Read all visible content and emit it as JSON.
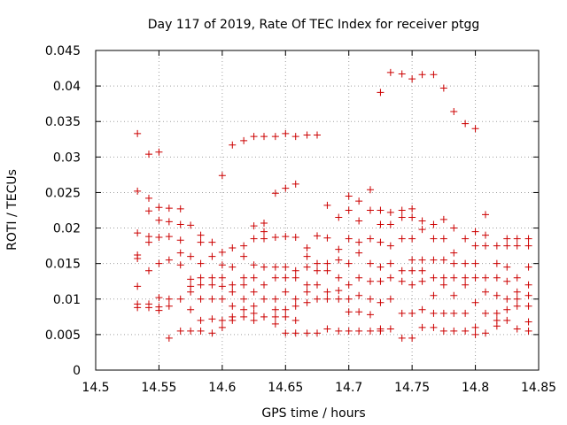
{
  "chart_data": {
    "type": "scatter",
    "title": "Day 117 of 2019, Rate Of TEC Index for receiver ptgg",
    "xlabel": "GPS time / hours",
    "ylabel": "ROTI / TECUs",
    "xlim": [
      14.5,
      14.85
    ],
    "ylim": [
      0,
      0.045
    ],
    "xticks": [
      14.5,
      14.55,
      14.6,
      14.65,
      14.7,
      14.75,
      14.8,
      14.85
    ],
    "xtick_labels": [
      "14.5",
      "14.55",
      "14.6",
      "14.65",
      "14.7",
      "14.75",
      "14.8",
      "14.85"
    ],
    "yticks": [
      0,
      0.005,
      0.01,
      0.015,
      0.02,
      0.025,
      0.03,
      0.035,
      0.04,
      0.045
    ],
    "ytick_labels": [
      "0",
      "0.005",
      "0.01",
      "0.015",
      "0.02",
      "0.025",
      "0.03",
      "0.035",
      "0.04",
      "0.045"
    ],
    "grid": true,
    "marker": "+",
    "color": "#cc0000",
    "series": [
      {
        "name": "ROTI",
        "points": [
          [
            14.533,
            0.0333
          ],
          [
            14.533,
            0.0252
          ],
          [
            14.533,
            0.0193
          ],
          [
            14.533,
            0.0162
          ],
          [
            14.533,
            0.0157
          ],
          [
            14.533,
            0.0118
          ],
          [
            14.533,
            0.0093
          ],
          [
            14.533,
            0.0088
          ],
          [
            14.542,
            0.0304
          ],
          [
            14.542,
            0.0242
          ],
          [
            14.542,
            0.0224
          ],
          [
            14.542,
            0.0188
          ],
          [
            14.542,
            0.018
          ],
          [
            14.542,
            0.014
          ],
          [
            14.542,
            0.0093
          ],
          [
            14.542,
            0.0088
          ],
          [
            14.55,
            0.0307
          ],
          [
            14.55,
            0.0229
          ],
          [
            14.55,
            0.0211
          ],
          [
            14.55,
            0.0187
          ],
          [
            14.55,
            0.015
          ],
          [
            14.55,
            0.0102
          ],
          [
            14.55,
            0.0089
          ],
          [
            14.55,
            0.0084
          ],
          [
            14.558,
            0.0228
          ],
          [
            14.558,
            0.0209
          ],
          [
            14.558,
            0.0188
          ],
          [
            14.558,
            0.0155
          ],
          [
            14.558,
            0.01
          ],
          [
            14.558,
            0.009
          ],
          [
            14.558,
            0.0045
          ],
          [
            14.567,
            0.0227
          ],
          [
            14.567,
            0.0205
          ],
          [
            14.567,
            0.0183
          ],
          [
            14.567,
            0.0165
          ],
          [
            14.567,
            0.0148
          ],
          [
            14.567,
            0.01
          ],
          [
            14.567,
            0.0055
          ],
          [
            14.575,
            0.0204
          ],
          [
            14.575,
            0.016
          ],
          [
            14.575,
            0.0128
          ],
          [
            14.575,
            0.0118
          ],
          [
            14.575,
            0.011
          ],
          [
            14.575,
            0.0085
          ],
          [
            14.575,
            0.0055
          ],
          [
            14.583,
            0.019
          ],
          [
            14.583,
            0.018
          ],
          [
            14.583,
            0.015
          ],
          [
            14.583,
            0.013
          ],
          [
            14.583,
            0.012
          ],
          [
            14.583,
            0.01
          ],
          [
            14.583,
            0.007
          ],
          [
            14.583,
            0.0055
          ],
          [
            14.592,
            0.018
          ],
          [
            14.592,
            0.016
          ],
          [
            14.592,
            0.013
          ],
          [
            14.592,
            0.012
          ],
          [
            14.592,
            0.01
          ],
          [
            14.592,
            0.0072
          ],
          [
            14.592,
            0.0052
          ],
          [
            14.6,
            0.0274
          ],
          [
            14.6,
            0.0166
          ],
          [
            14.6,
            0.0148
          ],
          [
            14.6,
            0.013
          ],
          [
            14.6,
            0.0118
          ],
          [
            14.6,
            0.01
          ],
          [
            14.6,
            0.007
          ],
          [
            14.6,
            0.006
          ],
          [
            14.608,
            0.0317
          ],
          [
            14.608,
            0.0172
          ],
          [
            14.608,
            0.0145
          ],
          [
            14.608,
            0.012
          ],
          [
            14.608,
            0.011
          ],
          [
            14.608,
            0.009
          ],
          [
            14.608,
            0.0075
          ],
          [
            14.608,
            0.007
          ],
          [
            14.617,
            0.0323
          ],
          [
            14.617,
            0.0175
          ],
          [
            14.617,
            0.016
          ],
          [
            14.617,
            0.013
          ],
          [
            14.617,
            0.012
          ],
          [
            14.617,
            0.01
          ],
          [
            14.617,
            0.0085
          ],
          [
            14.617,
            0.0075
          ],
          [
            14.625,
            0.0329
          ],
          [
            14.625,
            0.0203
          ],
          [
            14.625,
            0.0185
          ],
          [
            14.625,
            0.0148
          ],
          [
            14.625,
            0.013
          ],
          [
            14.625,
            0.011
          ],
          [
            14.625,
            0.009
          ],
          [
            14.625,
            0.008
          ],
          [
            14.625,
            0.007
          ],
          [
            14.633,
            0.0329
          ],
          [
            14.633,
            0.0207
          ],
          [
            14.633,
            0.0195
          ],
          [
            14.633,
            0.0185
          ],
          [
            14.633,
            0.0145
          ],
          [
            14.633,
            0.012
          ],
          [
            14.633,
            0.01
          ],
          [
            14.633,
            0.0075
          ],
          [
            14.642,
            0.0329
          ],
          [
            14.642,
            0.0249
          ],
          [
            14.642,
            0.0187
          ],
          [
            14.642,
            0.0145
          ],
          [
            14.642,
            0.013
          ],
          [
            14.642,
            0.01
          ],
          [
            14.642,
            0.0085
          ],
          [
            14.642,
            0.0075
          ],
          [
            14.642,
            0.0065
          ],
          [
            14.65,
            0.0333
          ],
          [
            14.65,
            0.0256
          ],
          [
            14.65,
            0.0188
          ],
          [
            14.65,
            0.0145
          ],
          [
            14.65,
            0.013
          ],
          [
            14.65,
            0.011
          ],
          [
            14.65,
            0.0085
          ],
          [
            14.65,
            0.0075
          ],
          [
            14.65,
            0.0052
          ],
          [
            14.658,
            0.0329
          ],
          [
            14.658,
            0.0262
          ],
          [
            14.658,
            0.0187
          ],
          [
            14.658,
            0.014
          ],
          [
            14.658,
            0.013
          ],
          [
            14.658,
            0.01
          ],
          [
            14.658,
            0.009
          ],
          [
            14.658,
            0.007
          ],
          [
            14.658,
            0.0052
          ],
          [
            14.667,
            0.0331
          ],
          [
            14.667,
            0.0172
          ],
          [
            14.667,
            0.016
          ],
          [
            14.667,
            0.0145
          ],
          [
            14.667,
            0.012
          ],
          [
            14.667,
            0.011
          ],
          [
            14.667,
            0.0095
          ],
          [
            14.667,
            0.0052
          ],
          [
            14.675,
            0.0331
          ],
          [
            14.675,
            0.0189
          ],
          [
            14.675,
            0.015
          ],
          [
            14.675,
            0.014
          ],
          [
            14.675,
            0.012
          ],
          [
            14.675,
            0.01
          ],
          [
            14.675,
            0.0052
          ],
          [
            14.683,
            0.0232
          ],
          [
            14.683,
            0.0186
          ],
          [
            14.683,
            0.015
          ],
          [
            14.683,
            0.014
          ],
          [
            14.683,
            0.011
          ],
          [
            14.683,
            0.01
          ],
          [
            14.683,
            0.0058
          ],
          [
            14.692,
            0.0215
          ],
          [
            14.692,
            0.017
          ],
          [
            14.692,
            0.0155
          ],
          [
            14.692,
            0.013
          ],
          [
            14.692,
            0.0112
          ],
          [
            14.692,
            0.01
          ],
          [
            14.692,
            0.0055
          ],
          [
            14.7,
            0.0245
          ],
          [
            14.7,
            0.0225
          ],
          [
            14.7,
            0.0185
          ],
          [
            14.7,
            0.015
          ],
          [
            14.7,
            0.012
          ],
          [
            14.7,
            0.01
          ],
          [
            14.7,
            0.0082
          ],
          [
            14.7,
            0.0055
          ],
          [
            14.708,
            0.0238
          ],
          [
            14.708,
            0.021
          ],
          [
            14.708,
            0.018
          ],
          [
            14.708,
            0.0165
          ],
          [
            14.708,
            0.013
          ],
          [
            14.708,
            0.0105
          ],
          [
            14.708,
            0.0082
          ],
          [
            14.708,
            0.0055
          ],
          [
            14.717,
            0.0254
          ],
          [
            14.717,
            0.0225
          ],
          [
            14.717,
            0.0185
          ],
          [
            14.717,
            0.015
          ],
          [
            14.717,
            0.0125
          ],
          [
            14.717,
            0.01
          ],
          [
            14.717,
            0.0078
          ],
          [
            14.717,
            0.0055
          ],
          [
            14.725,
            0.0391
          ],
          [
            14.725,
            0.0225
          ],
          [
            14.725,
            0.0205
          ],
          [
            14.725,
            0.018
          ],
          [
            14.725,
            0.0145
          ],
          [
            14.725,
            0.0125
          ],
          [
            14.725,
            0.0095
          ],
          [
            14.725,
            0.0058
          ],
          [
            14.725,
            0.0055
          ],
          [
            14.733,
            0.0419
          ],
          [
            14.733,
            0.0222
          ],
          [
            14.733,
            0.0205
          ],
          [
            14.733,
            0.0175
          ],
          [
            14.733,
            0.015
          ],
          [
            14.733,
            0.013
          ],
          [
            14.733,
            0.01
          ],
          [
            14.733,
            0.0058
          ],
          [
            14.742,
            0.0417
          ],
          [
            14.742,
            0.0225
          ],
          [
            14.742,
            0.0215
          ],
          [
            14.742,
            0.0185
          ],
          [
            14.742,
            0.014
          ],
          [
            14.742,
            0.0125
          ],
          [
            14.742,
            0.008
          ],
          [
            14.742,
            0.0045
          ],
          [
            14.75,
            0.041
          ],
          [
            14.75,
            0.0227
          ],
          [
            14.75,
            0.0215
          ],
          [
            14.75,
            0.0185
          ],
          [
            14.75,
            0.0155
          ],
          [
            14.75,
            0.014
          ],
          [
            14.75,
            0.012
          ],
          [
            14.75,
            0.008
          ],
          [
            14.75,
            0.0045
          ],
          [
            14.758,
            0.0416
          ],
          [
            14.758,
            0.021
          ],
          [
            14.758,
            0.0198
          ],
          [
            14.758,
            0.0155
          ],
          [
            14.758,
            0.014
          ],
          [
            14.758,
            0.0125
          ],
          [
            14.758,
            0.0085
          ],
          [
            14.758,
            0.006
          ],
          [
            14.767,
            0.0416
          ],
          [
            14.767,
            0.0205
          ],
          [
            14.767,
            0.0185
          ],
          [
            14.767,
            0.0155
          ],
          [
            14.767,
            0.013
          ],
          [
            14.767,
            0.0105
          ],
          [
            14.767,
            0.008
          ],
          [
            14.767,
            0.006
          ],
          [
            14.775,
            0.0397
          ],
          [
            14.775,
            0.0212
          ],
          [
            14.775,
            0.0185
          ],
          [
            14.775,
            0.0155
          ],
          [
            14.775,
            0.013
          ],
          [
            14.775,
            0.012
          ],
          [
            14.775,
            0.008
          ],
          [
            14.775,
            0.0055
          ],
          [
            14.783,
            0.0364
          ],
          [
            14.783,
            0.02
          ],
          [
            14.783,
            0.0165
          ],
          [
            14.783,
            0.015
          ],
          [
            14.783,
            0.013
          ],
          [
            14.783,
            0.0105
          ],
          [
            14.783,
            0.008
          ],
          [
            14.783,
            0.0055
          ],
          [
            14.792,
            0.0347
          ],
          [
            14.792,
            0.0185
          ],
          [
            14.792,
            0.015
          ],
          [
            14.792,
            0.013
          ],
          [
            14.792,
            0.012
          ],
          [
            14.792,
            0.008
          ],
          [
            14.792,
            0.0055
          ],
          [
            14.8,
            0.034
          ],
          [
            14.8,
            0.0195
          ],
          [
            14.8,
            0.0175
          ],
          [
            14.8,
            0.015
          ],
          [
            14.8,
            0.013
          ],
          [
            14.8,
            0.0095
          ],
          [
            14.8,
            0.006
          ],
          [
            14.8,
            0.005
          ],
          [
            14.808,
            0.0219
          ],
          [
            14.808,
            0.019
          ],
          [
            14.808,
            0.0175
          ],
          [
            14.808,
            0.013
          ],
          [
            14.808,
            0.011
          ],
          [
            14.808,
            0.008
          ],
          [
            14.808,
            0.0052
          ],
          [
            14.817,
            0.0175
          ],
          [
            14.817,
            0.015
          ],
          [
            14.817,
            0.013
          ],
          [
            14.817,
            0.0105
          ],
          [
            14.817,
            0.008
          ],
          [
            14.817,
            0.007
          ],
          [
            14.817,
            0.0062
          ],
          [
            14.825,
            0.0185
          ],
          [
            14.825,
            0.0175
          ],
          [
            14.825,
            0.0145
          ],
          [
            14.825,
            0.0125
          ],
          [
            14.825,
            0.01
          ],
          [
            14.825,
            0.0085
          ],
          [
            14.825,
            0.007
          ],
          [
            14.833,
            0.0185
          ],
          [
            14.833,
            0.0175
          ],
          [
            14.833,
            0.013
          ],
          [
            14.833,
            0.011
          ],
          [
            14.833,
            0.01
          ],
          [
            14.833,
            0.009
          ],
          [
            14.833,
            0.0058
          ],
          [
            14.842,
            0.0185
          ],
          [
            14.842,
            0.0175
          ],
          [
            14.842,
            0.0145
          ],
          [
            14.842,
            0.012
          ],
          [
            14.842,
            0.0105
          ],
          [
            14.842,
            0.009
          ],
          [
            14.842,
            0.0068
          ],
          [
            14.842,
            0.0055
          ]
        ]
      }
    ]
  }
}
